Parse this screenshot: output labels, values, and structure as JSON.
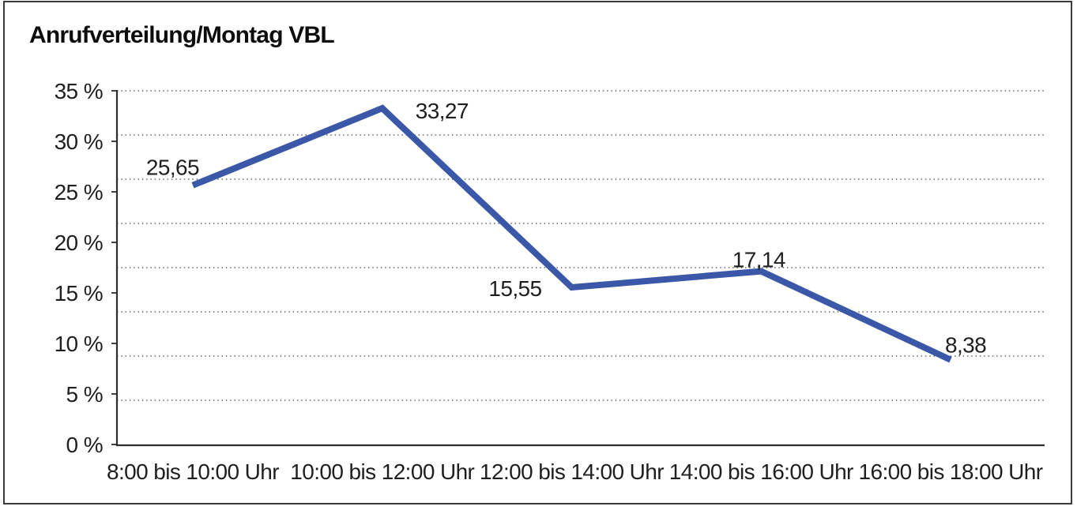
{
  "chart_data": {
    "type": "line",
    "title": "Anrufverteilung/Montag VBL",
    "categories": [
      "8:00 bis 10:00 Uhr",
      "10:00 bis 12:00 Uhr",
      "12:00 bis 14:00 Uhr",
      "14:00 bis 16:00 Uhr",
      "16:00 bis 18:00 Uhr"
    ],
    "values": [
      25.65,
      33.27,
      15.55,
      17.14,
      8.38
    ],
    "value_labels": [
      "25,65",
      "33,27",
      "15,55",
      "17,14",
      "8,38"
    ],
    "y_ticks": [
      {
        "value": 35,
        "label": "35 %"
      },
      {
        "value": 30,
        "label": "30 %"
      },
      {
        "value": 25,
        "label": "25 %"
      },
      {
        "value": 20,
        "label": "20 %"
      },
      {
        "value": 15,
        "label": "15 %"
      },
      {
        "value": 10,
        "label": "10 %"
      },
      {
        "value": 5,
        "label": "5 %"
      },
      {
        "value": 0,
        "label": "0 %"
      }
    ],
    "ylim": [
      0,
      35
    ],
    "xlabel": "",
    "ylabel": "",
    "legend": "none",
    "grid": "dotted-horizontal",
    "colors": {
      "line": "#3A57A8",
      "axis": "#2e2e2e",
      "gridline": "#454545",
      "text": "#1f1f1f",
      "frame": "#3b3b3b"
    }
  }
}
